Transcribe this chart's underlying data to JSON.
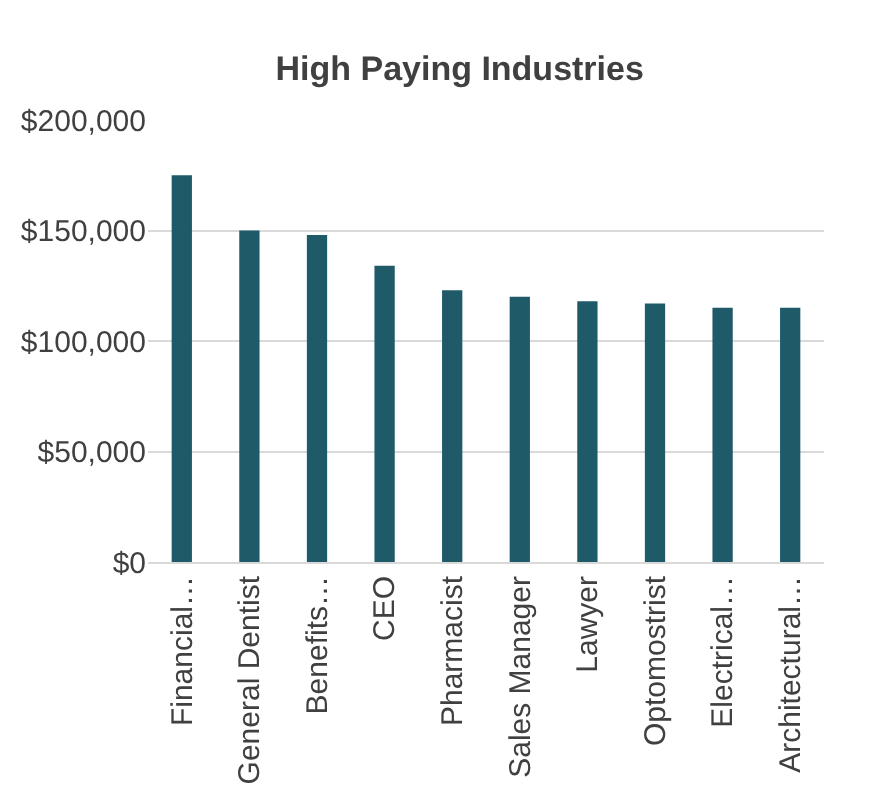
{
  "chart_data": {
    "type": "bar",
    "title": "High Paying Industries",
    "categories": [
      "Financial…",
      "General Dentist",
      "Benefits…",
      "CEO",
      "Pharmacist",
      "Sales Manager",
      "Lawyer",
      "Optomostrist",
      "Electrical…",
      "Architectural…"
    ],
    "values": [
      175000,
      150000,
      148000,
      134000,
      123000,
      120000,
      118000,
      117000,
      115000,
      115000
    ],
    "color": "#1f5a68",
    "ylim": [
      0,
      200000
    ],
    "yticks": [
      {
        "value": 0,
        "label": "$0"
      },
      {
        "value": 50000,
        "label": "$50,000"
      },
      {
        "value": 100000,
        "label": "$100,000"
      },
      {
        "value": 150000,
        "label": "$150,000"
      },
      {
        "value": 200000,
        "label": "$200,000"
      }
    ],
    "grid": "y",
    "legend": false
  }
}
